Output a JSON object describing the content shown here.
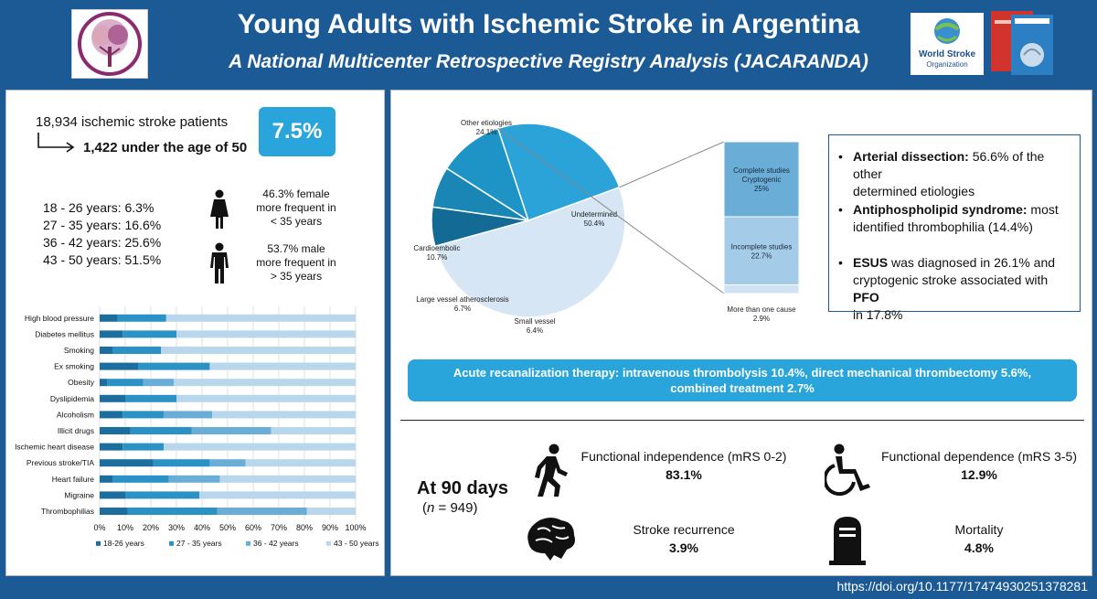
{
  "header": {
    "title": "Young Adults with Ischemic Stroke in Argentina",
    "subtitle": "A National Multicenter Retrospective Registry Analysis (JACARANDA)",
    "wso_line1": "World Stroke",
    "wso_line2": "Organization"
  },
  "summary": {
    "total": "18,934 ischemic stroke patients",
    "under50": "1,422 under the age of 50",
    "percent": "7.5%"
  },
  "age_groups": [
    "18 - 26 years: 6.3%",
    "27 - 35 years: 16.6%",
    "36 - 42 years: 25.6%",
    "43 - 50 years: 51.5%"
  ],
  "sex": {
    "female_line1": "46.3% female",
    "female_line2": "more frequent in",
    "female_line3": "< 35 years",
    "male_line1": "53.7% male",
    "male_line2": "more frequent in",
    "male_line3": "> 35 years"
  },
  "colors": {
    "c1": "#1b6e9e",
    "c2": "#2a92c4",
    "c3": "#6aaed8",
    "c4": "#b8d6ec",
    "accent": "#1c5a96",
    "box": "#29a5dc"
  },
  "risk_chart": {
    "type": "bar",
    "categories": [
      "High blood pressure",
      "Diabetes mellitus",
      "Smoking",
      "Ex smoking",
      "Obesity",
      "Dyslipidemia",
      "Alcoholism",
      "Illicit drugs",
      "Ischemic heart disease",
      "Previous stroke/TIA",
      "Heart failure",
      "Migraine",
      "Thrombophilias"
    ],
    "series": [
      {
        "name": "18-26 years",
        "values": [
          7,
          9,
          5,
          15,
          3,
          10,
          9,
          12,
          9,
          21,
          5,
          10,
          11
        ]
      },
      {
        "name": "27 - 35 years",
        "values": [
          19,
          21,
          19,
          28,
          14,
          20,
          16,
          24,
          16,
          22,
          22,
          29,
          35
        ]
      },
      {
        "name": "36 - 42 years",
        "values": [
          0,
          0,
          0,
          0,
          12,
          0,
          19,
          31,
          0,
          14,
          20,
          0,
          35
        ]
      },
      {
        "name": "43 - 50 years",
        "values": [
          74,
          70,
          76,
          57,
          71,
          70,
          56,
          33,
          75,
          43,
          53,
          61,
          19
        ]
      }
    ],
    "ticks": [
      "0%",
      "10%",
      "20%",
      "30%",
      "40%",
      "50%",
      "60%",
      "70%",
      "80%",
      "90%",
      "100%"
    ]
  },
  "pie": {
    "slices": [
      {
        "label": "Undetermined",
        "value_label": "50.4%",
        "value": 50.4
      },
      {
        "label": "Small vessel",
        "value_label": "6.4%",
        "value": 6.4
      },
      {
        "label": "Large vessel atherosclerosis",
        "value_label": "6.7%",
        "value": 6.7
      },
      {
        "label": "Cardioembolic",
        "value_label": "10.7%",
        "value": 10.7
      },
      {
        "label": "Other etiologies",
        "value_label": "24.1%",
        "value": 24.1
      }
    ],
    "stack": [
      {
        "l1": "Complete studies",
        "l2": "Cryptogenic",
        "l3": "25%",
        "value": 25
      },
      {
        "l1": "Incomplete studies",
        "l2": "22.7%",
        "l3": "",
        "value": 22.7
      },
      {
        "l1": "",
        "l2": "",
        "l3": "",
        "value": 2.9
      }
    ],
    "more_than_one_1": "More than one cause",
    "more_than_one_2": "2.9%"
  },
  "bullets": {
    "b1_bold": "Arterial dissection:",
    "b1_text": " 56.6% of the other",
    "b1_line2": "determined etiologies",
    "b2_bold": "Antiphospholipid syndrome:",
    "b2_text": " most",
    "b2_line2": "identified thrombophilia (14.4%)",
    "b3_bold": "ESUS",
    "b3_text": " was diagnosed in 26.1% and",
    "b3_line2a": "cryptogenic stroke associated with ",
    "b3_line2b": "PFO",
    "b3_line3": "in 17.8%"
  },
  "therapy": {
    "line1": "Acute recanalization therapy: intravenous thrombolysis 10.4%, direct mechanical thrombectomy 5.6%,",
    "line2": "combined treatment 2.7%"
  },
  "outcomes": {
    "at90": "At 90 days",
    "n_italic": "n",
    "n_rest": " = 949)",
    "n_open": "(",
    "fi_label": "Functional independence (mRS 0-2)",
    "fi_value": "83.1%",
    "fd_label": "Functional dependence (mRS 3-5)",
    "fd_value": "12.9%",
    "sr_label": "Stroke recurrence",
    "sr_value": "3.9%",
    "mo_label": "Mortality",
    "mo_value": "4.8%"
  },
  "doi": "https://doi.org/10.1177/17474930251378281"
}
